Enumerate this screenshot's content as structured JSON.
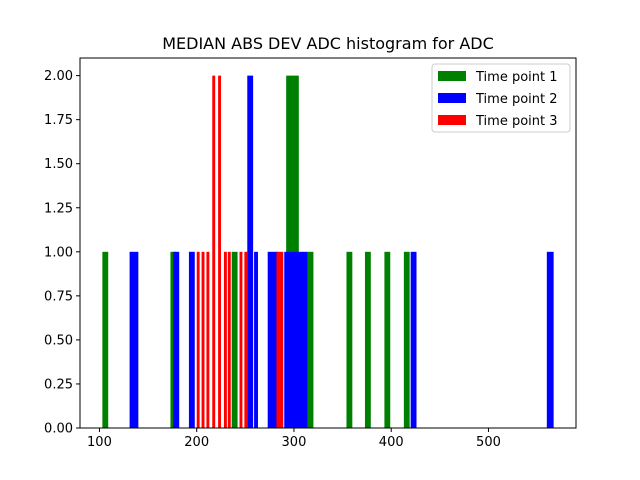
{
  "chart_data": {
    "type": "bar",
    "title": "MEDIAN ABS DEV ADC histogram for ADC",
    "xlabel": "",
    "ylabel": "",
    "xlim": [
      80,
      590
    ],
    "ylim": [
      0,
      2.1
    ],
    "xticks": [
      100,
      200,
      300,
      400,
      500
    ],
    "yticks": [
      0.0,
      0.25,
      0.5,
      0.75,
      1.0,
      1.25,
      1.5,
      1.75,
      2.0
    ],
    "xtick_labels": [
      "100",
      "200",
      "300",
      "400",
      "500"
    ],
    "ytick_labels": [
      "0.00",
      "0.25",
      "0.50",
      "0.75",
      "1.00",
      "1.25",
      "1.50",
      "1.75",
      "2.00"
    ],
    "grid": false,
    "legend_position": "top-right",
    "series": [
      {
        "name": "Time point 1",
        "color": "#008000",
        "bins": [
          {
            "x0": 103,
            "x1": 109,
            "count": 1
          },
          {
            "x0": 173,
            "x1": 179,
            "count": 1
          },
          {
            "x0": 236,
            "x1": 242,
            "count": 1
          },
          {
            "x0": 292,
            "x1": 305,
            "count": 2
          },
          {
            "x0": 314,
            "x1": 320,
            "count": 1
          },
          {
            "x0": 354,
            "x1": 360,
            "count": 1
          },
          {
            "x0": 373,
            "x1": 379,
            "count": 1
          },
          {
            "x0": 393,
            "x1": 399,
            "count": 1
          },
          {
            "x0": 413,
            "x1": 419,
            "count": 1
          }
        ]
      },
      {
        "name": "Time point 2",
        "color": "#0000ff",
        "bins": [
          {
            "x0": 131,
            "x1": 140,
            "count": 1
          },
          {
            "x0": 176,
            "x1": 182,
            "count": 1
          },
          {
            "x0": 192,
            "x1": 198,
            "count": 1
          },
          {
            "x0": 252,
            "x1": 258,
            "count": 2
          },
          {
            "x0": 259,
            "x1": 263,
            "count": 1
          },
          {
            "x0": 273,
            "x1": 284,
            "count": 1
          },
          {
            "x0": 290,
            "x1": 297,
            "count": 1
          },
          {
            "x0": 297,
            "x1": 314,
            "count": 1
          },
          {
            "x0": 420,
            "x1": 426,
            "count": 1
          },
          {
            "x0": 560,
            "x1": 567,
            "count": 1
          }
        ]
      },
      {
        "name": "Time point 3",
        "color": "#ff0000",
        "bins": [
          {
            "x0": 200,
            "x1": 203,
            "count": 1
          },
          {
            "x0": 205,
            "x1": 208,
            "count": 1
          },
          {
            "x0": 210,
            "x1": 213,
            "count": 1
          },
          {
            "x0": 216,
            "x1": 219,
            "count": 2
          },
          {
            "x0": 222,
            "x1": 225,
            "count": 2
          },
          {
            "x0": 228,
            "x1": 231,
            "count": 1
          },
          {
            "x0": 232,
            "x1": 235,
            "count": 1
          },
          {
            "x0": 244,
            "x1": 247,
            "count": 1
          },
          {
            "x0": 249,
            "x1": 252,
            "count": 1
          },
          {
            "x0": 282,
            "x1": 289,
            "count": 1
          }
        ]
      }
    ]
  }
}
